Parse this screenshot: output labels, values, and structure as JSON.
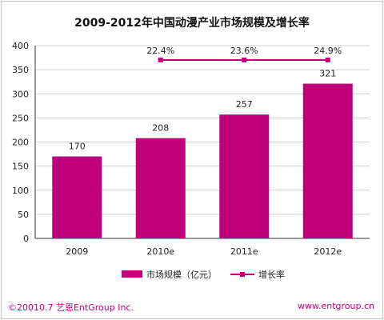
{
  "page": {
    "copyright": "©20010.7 艺恩EntGroup Inc.",
    "website": "www.entgroup.cn"
  },
  "colors": {
    "bar": "#c0007a",
    "line": "#c0007a",
    "axis": "#333333",
    "grid": "#d0d0d0",
    "footer": "#c0007a"
  },
  "chart_data": {
    "type": "bar",
    "title": "2009-2012年中国动漫产业市场规模及增长率",
    "xlabel": "",
    "ylabel": "",
    "categories": [
      "2009",
      "2010e",
      "2011e",
      "2012e"
    ],
    "ylim": [
      0,
      400
    ],
    "yticks": [
      0,
      50,
      100,
      150,
      200,
      250,
      300,
      350,
      400
    ],
    "grid": true,
    "legend_position": "bottom",
    "series": [
      {
        "name": "市场规模（亿元）",
        "kind": "bar",
        "values": [
          170,
          208,
          257,
          321
        ],
        "labels": [
          "170",
          "208",
          "257",
          "321"
        ]
      },
      {
        "name": "增长率",
        "kind": "line",
        "values": [
          null,
          22.4,
          23.6,
          24.9
        ],
        "labels": [
          "",
          "22.4%",
          "23.6%",
          "24.9%"
        ]
      }
    ]
  }
}
